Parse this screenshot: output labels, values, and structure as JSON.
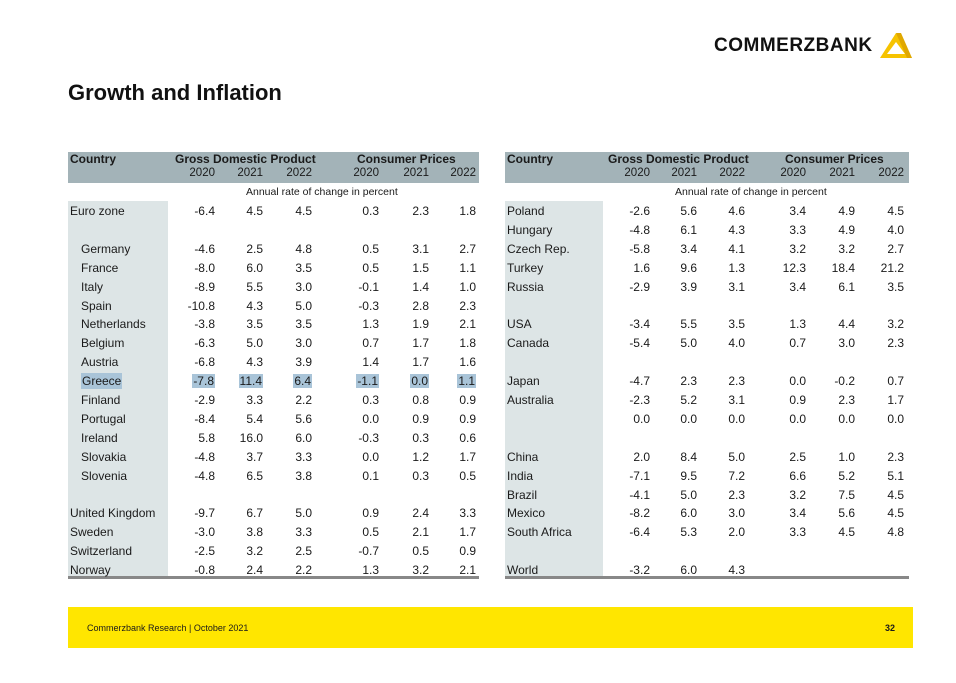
{
  "logo": {
    "text": "COMMERZBANK"
  },
  "title": "Growth and Inflation",
  "headers": {
    "country": "Country",
    "gdp": "Gross Domestic Product",
    "cpi": "Consumer Prices",
    "years": [
      "2020",
      "2021",
      "2022"
    ],
    "subtitle": "Annual rate of change in percent"
  },
  "highlight_color": "#a9c4d8",
  "left_table": [
    {
      "country": "Euro zone",
      "indent": false,
      "values": [
        "-6.4",
        "4.5",
        "4.5",
        "0.3",
        "2.3",
        "1.8"
      ]
    },
    {
      "country": "",
      "indent": false,
      "values": [
        "",
        "",
        "",
        "",
        "",
        ""
      ]
    },
    {
      "country": "Germany",
      "indent": true,
      "values": [
        "-4.6",
        "2.5",
        "4.8",
        "0.5",
        "3.1",
        "2.7"
      ]
    },
    {
      "country": "France",
      "indent": true,
      "values": [
        "-8.0",
        "6.0",
        "3.5",
        "0.5",
        "1.5",
        "1.1"
      ]
    },
    {
      "country": "Italy",
      "indent": true,
      "values": [
        "-8.9",
        "5.5",
        "3.0",
        "-0.1",
        "1.4",
        "1.0"
      ]
    },
    {
      "country": "Spain",
      "indent": true,
      "values": [
        "-10.8",
        "4.3",
        "5.0",
        "-0.3",
        "2.8",
        "2.3"
      ]
    },
    {
      "country": "Netherlands",
      "indent": true,
      "values": [
        "-3.8",
        "3.5",
        "3.5",
        "1.3",
        "1.9",
        "2.1"
      ]
    },
    {
      "country": "Belgium",
      "indent": true,
      "values": [
        "-6.3",
        "5.0",
        "3.0",
        "0.7",
        "1.7",
        "1.8"
      ]
    },
    {
      "country": "Austria",
      "indent": true,
      "values": [
        "-6.8",
        "4.3",
        "3.9",
        "1.4",
        "1.7",
        "1.6"
      ]
    },
    {
      "country": "Greece",
      "indent": true,
      "highlight": true,
      "values": [
        "-7.8",
        "11.4",
        "6.4",
        "-1.1",
        "0.0",
        "1.1"
      ]
    },
    {
      "country": "Finland",
      "indent": true,
      "values": [
        "-2.9",
        "3.3",
        "2.2",
        "0.3",
        "0.8",
        "0.9"
      ]
    },
    {
      "country": "Portugal",
      "indent": true,
      "values": [
        "-8.4",
        "5.4",
        "5.6",
        "0.0",
        "0.9",
        "0.9"
      ]
    },
    {
      "country": "Ireland",
      "indent": true,
      "values": [
        "5.8",
        "16.0",
        "6.0",
        "-0.3",
        "0.3",
        "0.6"
      ]
    },
    {
      "country": "Slovakia",
      "indent": true,
      "values": [
        "-4.8",
        "3.7",
        "3.3",
        "0.0",
        "1.2",
        "1.7"
      ]
    },
    {
      "country": "Slovenia",
      "indent": true,
      "values": [
        "-4.8",
        "6.5",
        "3.8",
        "0.1",
        "0.3",
        "0.5"
      ]
    },
    {
      "country": "",
      "indent": false,
      "values": [
        "",
        "",
        "",
        "",
        "",
        ""
      ]
    },
    {
      "country": "United Kingdom",
      "indent": false,
      "values": [
        "-9.7",
        "6.7",
        "5.0",
        "0.9",
        "2.4",
        "3.3"
      ]
    },
    {
      "country": "Sweden",
      "indent": false,
      "values": [
        "-3.0",
        "3.8",
        "3.3",
        "0.5",
        "2.1",
        "1.7"
      ]
    },
    {
      "country": "Switzerland",
      "indent": false,
      "values": [
        "-2.5",
        "3.2",
        "2.5",
        "-0.7",
        "0.5",
        "0.9"
      ]
    },
    {
      "country": "Norway",
      "indent": false,
      "values": [
        "-0.8",
        "2.4",
        "2.2",
        "1.3",
        "3.2",
        "2.1"
      ]
    }
  ],
  "right_table": [
    {
      "country": "Poland",
      "values": [
        "-2.6",
        "5.6",
        "4.6",
        "3.4",
        "4.9",
        "4.5"
      ]
    },
    {
      "country": "Hungary",
      "values": [
        "-4.8",
        "6.1",
        "4.3",
        "3.3",
        "4.9",
        "4.0"
      ]
    },
    {
      "country": "Czech Rep.",
      "values": [
        "-5.8",
        "3.4",
        "4.1",
        "3.2",
        "3.2",
        "2.7"
      ]
    },
    {
      "country": "Turkey",
      "values": [
        "1.6",
        "9.6",
        "1.3",
        "12.3",
        "18.4",
        "21.2"
      ]
    },
    {
      "country": "Russia",
      "values": [
        "-2.9",
        "3.9",
        "3.1",
        "3.4",
        "6.1",
        "3.5"
      ]
    },
    {
      "country": "",
      "values": [
        "",
        "",
        "",
        "",
        "",
        ""
      ]
    },
    {
      "country": "USA",
      "values": [
        "-3.4",
        "5.5",
        "3.5",
        "1.3",
        "4.4",
        "3.2"
      ]
    },
    {
      "country": "Canada",
      "values": [
        "-5.4",
        "5.0",
        "4.0",
        "0.7",
        "3.0",
        "2.3"
      ]
    },
    {
      "country": "",
      "values": [
        "",
        "",
        "",
        "",
        "",
        ""
      ]
    },
    {
      "country": "Japan",
      "values": [
        "-4.7",
        "2.3",
        "2.3",
        "0.0",
        "-0.2",
        "0.7"
      ]
    },
    {
      "country": "Australia",
      "values": [
        "-2.3",
        "5.2",
        "3.1",
        "0.9",
        "2.3",
        "1.7"
      ]
    },
    {
      "country": "",
      "values": [
        "0.0",
        "0.0",
        "0.0",
        "0.0",
        "0.0",
        "0.0"
      ]
    },
    {
      "country": "",
      "values": [
        "",
        "",
        "",
        "",
        "",
        ""
      ]
    },
    {
      "country": "China",
      "values": [
        "2.0",
        "8.4",
        "5.0",
        "2.5",
        "1.0",
        "2.3"
      ]
    },
    {
      "country": "India",
      "values": [
        "-7.1",
        "9.5",
        "7.2",
        "6.6",
        "5.2",
        "5.1"
      ]
    },
    {
      "country": "Brazil",
      "values": [
        "-4.1",
        "5.0",
        "2.3",
        "3.2",
        "7.5",
        "4.5"
      ]
    },
    {
      "country": "Mexico",
      "values": [
        "-8.2",
        "6.0",
        "3.0",
        "3.4",
        "5.6",
        "4.5"
      ]
    },
    {
      "country": "South Africa",
      "values": [
        "-6.4",
        "5.3",
        "2.0",
        "3.3",
        "4.5",
        "4.8"
      ]
    },
    {
      "country": "",
      "values": [
        "",
        "",
        "",
        "",
        "",
        ""
      ]
    },
    {
      "country": "World",
      "values": [
        "-3.2",
        "6.0",
        "4.3",
        "",
        "",
        ""
      ]
    }
  ],
  "footer": {
    "source": "Commerzbank Research  |  October 2021",
    "page": "32"
  }
}
